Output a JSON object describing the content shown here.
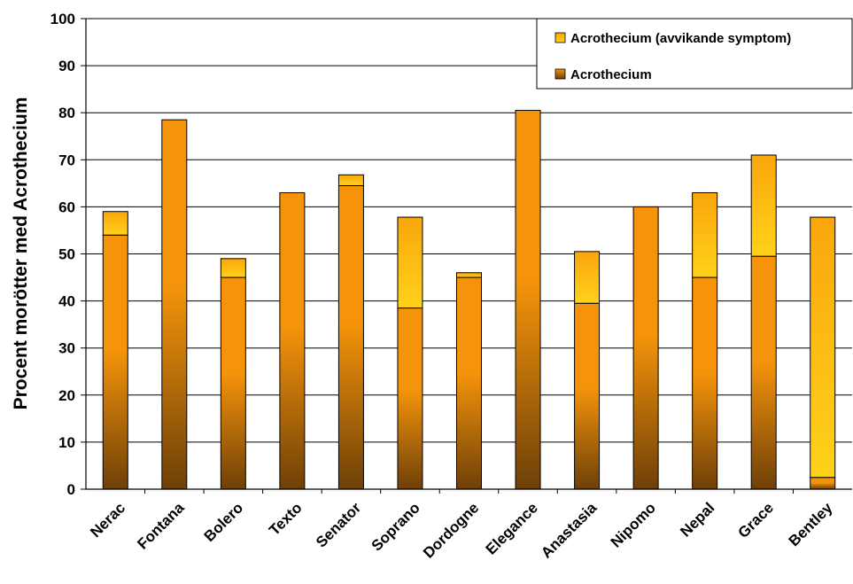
{
  "chart_data": {
    "type": "bar",
    "stacked": true,
    "title": "",
    "xlabel": "",
    "ylabel": "Procent morötter med Acrothecium",
    "ylim": [
      0,
      100
    ],
    "yticks": [
      0,
      10,
      20,
      30,
      40,
      50,
      60,
      70,
      80,
      90,
      100
    ],
    "grid": "horizontal",
    "legend_position": "top-right",
    "categories": [
      "Nerac",
      "Fontana",
      "Bolero",
      "Texto",
      "Senator",
      "Soprano",
      "Dordogne",
      "Elegance",
      "Anastasia",
      "Nipomo",
      "Nepal",
      "Grace",
      "Bentley"
    ],
    "series": [
      {
        "name": "Acrothecium",
        "color": "#f5940a",
        "color_dark": "#7a4a08",
        "values": [
          54,
          78.5,
          45,
          63,
          64.5,
          38.5,
          45,
          80.5,
          39.5,
          60,
          45,
          49.5,
          2.5
        ]
      },
      {
        "name": "Acrothecium (avvikande symptom)",
        "color": "#fec40c",
        "color_light": "#ffd92a",
        "values": [
          5,
          0,
          4,
          0,
          2.3,
          19.3,
          1,
          0,
          11,
          0,
          18,
          21.5,
          55.3
        ]
      }
    ]
  }
}
